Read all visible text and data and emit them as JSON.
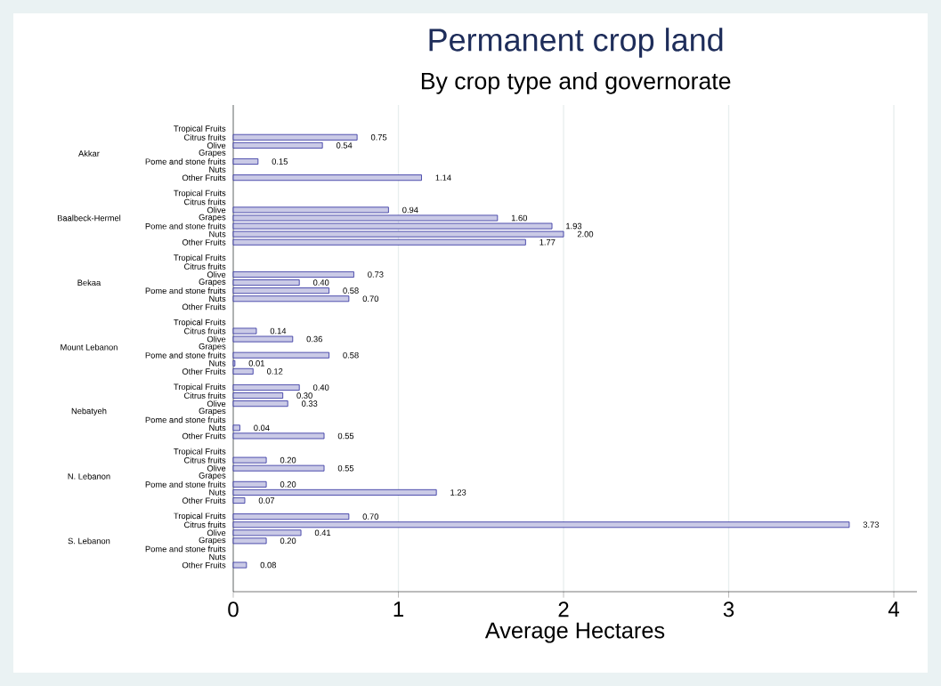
{
  "chart_data": {
    "type": "bar",
    "orientation": "horizontal",
    "title": "Permanent crop land",
    "subtitle": "By crop type and governorate",
    "xlabel": "Average Hectares",
    "categories": [
      "Tropical Fruits",
      "Citrus fruits",
      "Olive",
      "Grapes",
      "Pome and stone fruits",
      "Nuts",
      "Other Fruits",
      "Tropical Fruits",
      "Citrus fruits",
      "Olive",
      "Grapes",
      "Pome and stone fruits",
      "Nuts",
      "Other Fruits",
      "Tropical Fruits",
      "Citrus fruits",
      "Olive",
      "Grapes",
      "Pome and stone fruits",
      "Nuts",
      "Other Fruits",
      "Tropical Fruits",
      "Citrus fruits",
      "Olive",
      "Grapes",
      "Pome and stone fruits",
      "Nuts",
      "Other Fruits",
      "Tropical Fruits",
      "Citrus fruits",
      "Olive",
      "Grapes",
      "Pome and stone fruits",
      "Nuts",
      "Other Fruits",
      "Tropical Fruits",
      "Citrus fruits",
      "Olive",
      "Grapes",
      "Pome and stone fruits",
      "Nuts",
      "Other Fruits",
      "Tropical Fruits",
      "Citrus fruits",
      "Olive",
      "Grapes",
      "Pome and stone fruits",
      "Nuts",
      "Other Fruits"
    ],
    "values": [
      null,
      0.75,
      0.54,
      null,
      0.15,
      null,
      1.14,
      null,
      null,
      0.94,
      1.6,
      1.93,
      2.0,
      1.77,
      null,
      null,
      0.73,
      0.4,
      0.58,
      0.7,
      null,
      null,
      0.14,
      0.36,
      null,
      0.58,
      0.01,
      0.12,
      0.4,
      0.3,
      0.33,
      null,
      null,
      0.04,
      0.55,
      null,
      0.2,
      0.55,
      null,
      0.2,
      1.23,
      0.07,
      0.7,
      3.73,
      0.41,
      0.2,
      null,
      null,
      0.08
    ],
    "value_labels": [
      null,
      "0.75",
      "0.54",
      null,
      "0.15",
      null,
      "1.14",
      null,
      null,
      "0.94",
      "1.60",
      "1.93",
      "2.00",
      "1.77",
      null,
      null,
      "0.73",
      "0.40",
      "0.58",
      "0.70",
      null,
      null,
      "0.14",
      "0.36",
      null,
      "0.58",
      "0.01",
      "0.12",
      "0.40",
      "0.30",
      "0.33",
      null,
      null,
      "0.04",
      "0.55",
      null,
      "0.20",
      "0.55",
      null,
      "0.20",
      "1.23",
      "0.07",
      "0.70",
      "3.73",
      "0.41",
      "0.20",
      null,
      null,
      "0.08"
    ],
    "annotations": [
      "Akkar",
      "Baalbeck-Hermel",
      "Bekaa",
      "Mount Lebanon",
      "Nebatyeh",
      "N. Lebanon",
      "S. Lebanon"
    ],
    "color": "#2a2a9c",
    "xlim": [
      0,
      4.14
    ],
    "xticks": [
      0,
      1,
      2,
      3,
      4
    ],
    "grid": "x"
  }
}
